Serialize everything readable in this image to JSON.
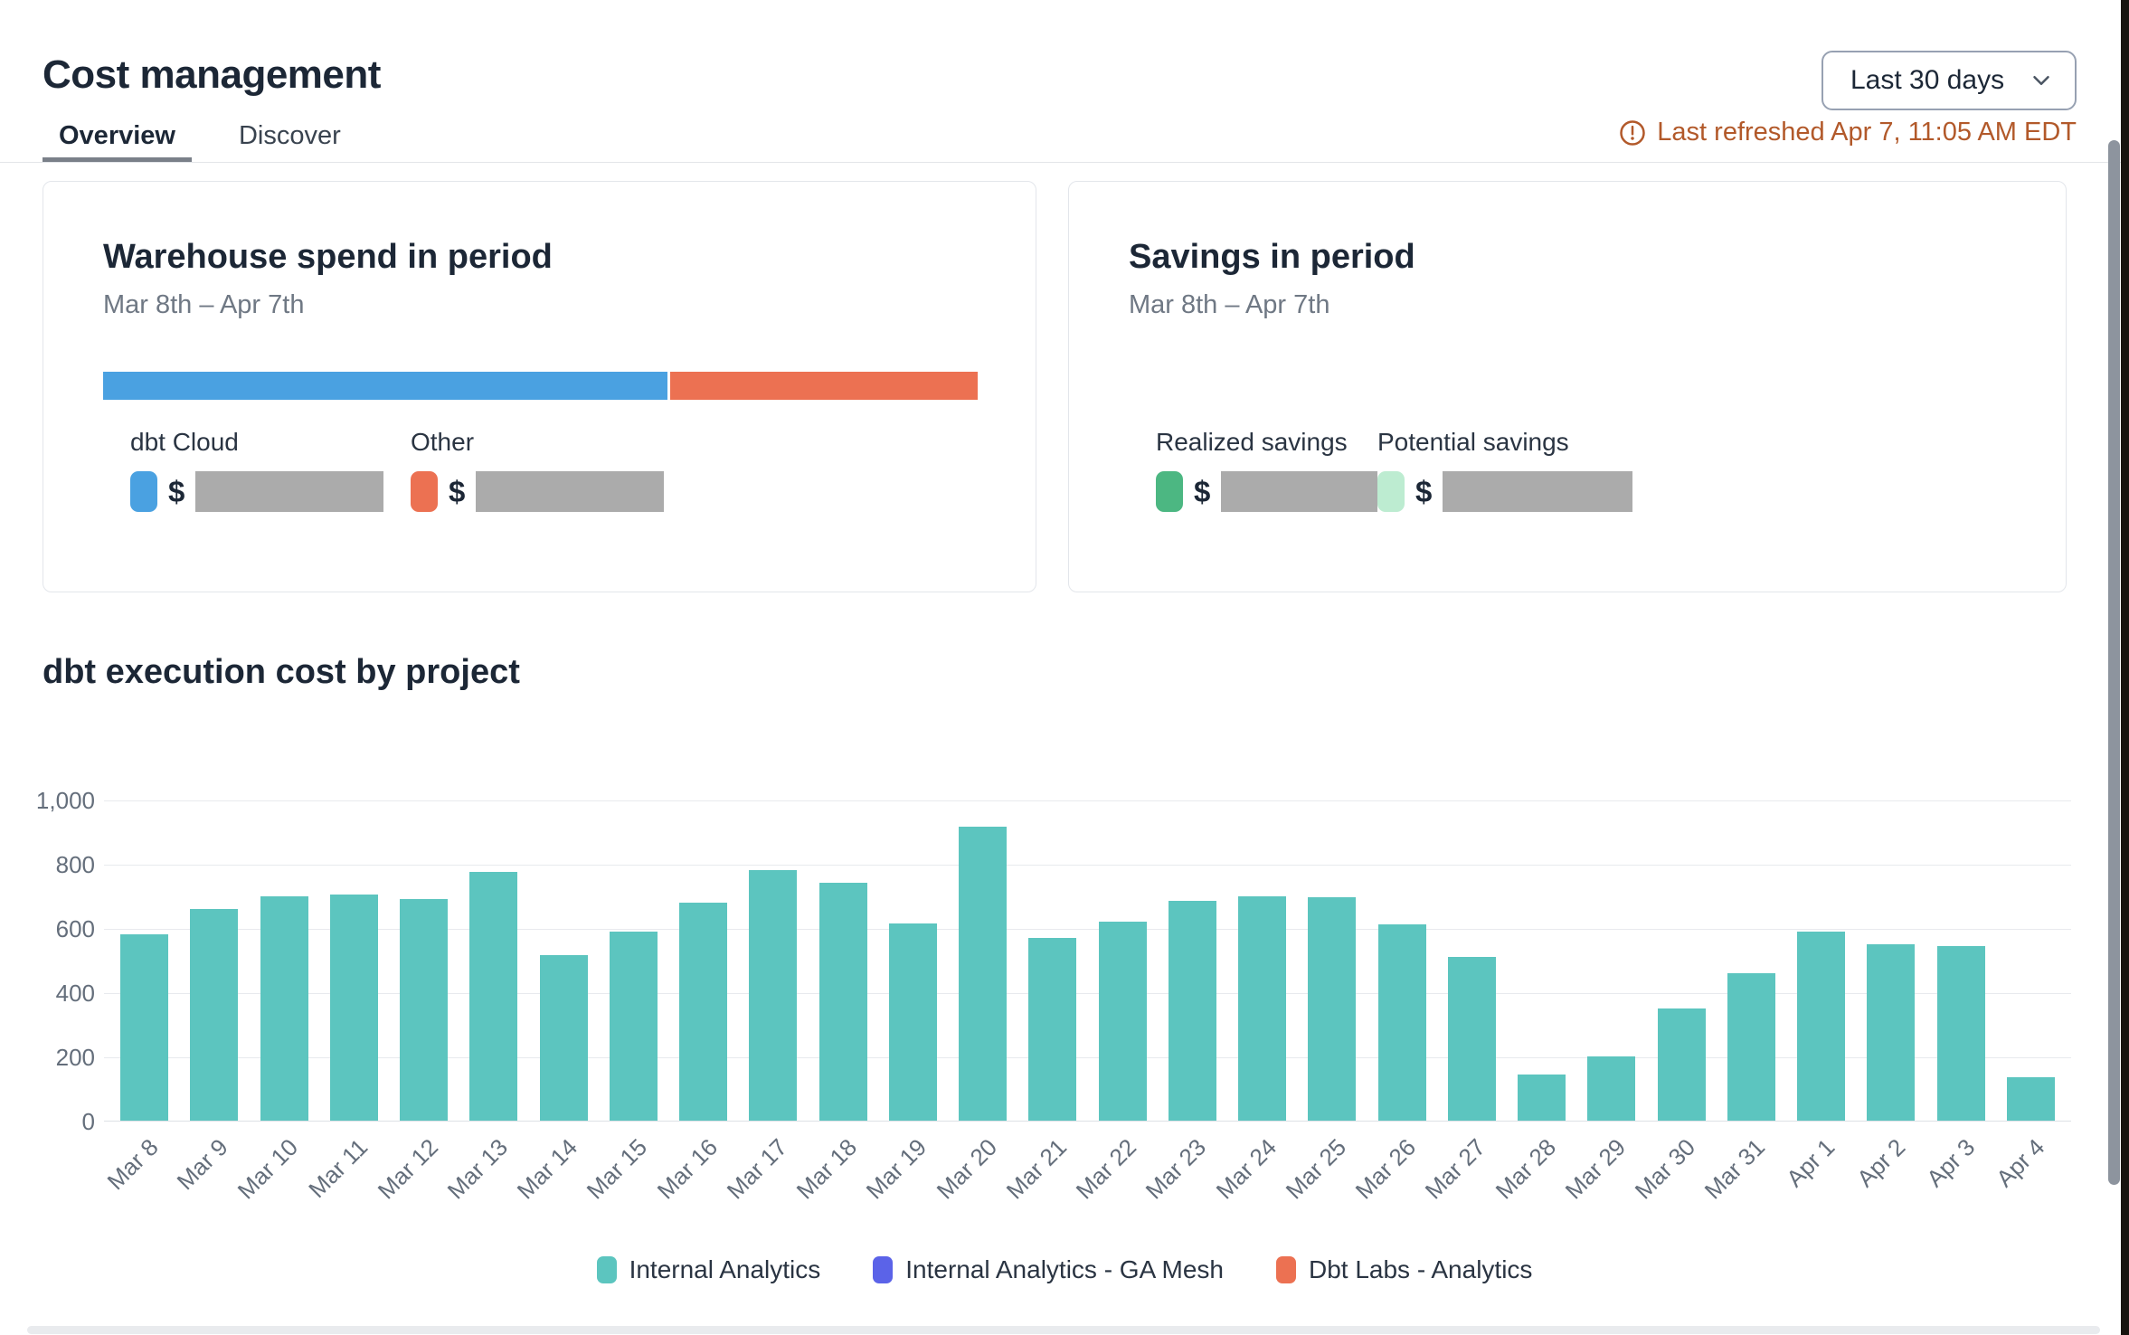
{
  "header": {
    "title": "Cost management",
    "tabs": [
      {
        "label": "Overview",
        "active": true
      },
      {
        "label": "Discover",
        "active": false
      }
    ],
    "date_range_selector": {
      "value": "Last 30 days"
    },
    "last_refreshed": "Last refreshed Apr 7, 11:05 AM EDT"
  },
  "colors": {
    "dbt_cloud_blue": "#4AA1E1",
    "other_orange": "#EC7152",
    "teal": "#5CC5BF",
    "indigo": "#5B63E8",
    "green": "#4CB782",
    "light_green": "#BDECD1",
    "redacted_gray": "#ABABAB",
    "warning_orange": "#B2592A"
  },
  "cards": {
    "warehouse_spend": {
      "title": "Warehouse spend in period",
      "subtitle": "Mar 8th – Apr 7th",
      "stacked_bar": {
        "segments": [
          {
            "label": "dbt Cloud",
            "color": "#4AA1E1",
            "percent": 64.5
          },
          {
            "label": "Other",
            "color": "#EC7152",
            "percent": 35.5
          }
        ]
      },
      "legend": [
        {
          "label": "dbt Cloud",
          "color": "#4AA1E1",
          "currency": "$",
          "value_redacted": true
        },
        {
          "label": "Other",
          "color": "#EC7152",
          "currency": "$",
          "value_redacted": true
        }
      ]
    },
    "savings": {
      "title": "Savings in period",
      "subtitle": "Mar 8th – Apr 7th",
      "legend": [
        {
          "label": "Realized savings",
          "color": "#4CB782",
          "currency": "$",
          "value_redacted": true
        },
        {
          "label": "Potential savings",
          "color": "#BDECD1",
          "currency": "$",
          "value_redacted": true
        }
      ]
    }
  },
  "chart_section": {
    "title": "dbt execution cost by project"
  },
  "chart_data": {
    "type": "bar",
    "title": "dbt execution cost by project",
    "categories": [
      "Mar 8",
      "Mar 9",
      "Mar 10",
      "Mar 11",
      "Mar 12",
      "Mar 13",
      "Mar 14",
      "Mar 15",
      "Mar 16",
      "Mar 17",
      "Mar 18",
      "Mar 19",
      "Mar 20",
      "Mar 21",
      "Mar 22",
      "Mar 23",
      "Mar 24",
      "Mar 25",
      "Mar 26",
      "Mar 27",
      "Mar 28",
      "Mar 29",
      "Mar 30",
      "Mar 31",
      "Apr 1",
      "Apr 2",
      "Apr 3",
      "Apr 4"
    ],
    "values": [
      580,
      660,
      700,
      705,
      690,
      775,
      515,
      590,
      680,
      780,
      740,
      615,
      915,
      570,
      620,
      685,
      700,
      695,
      610,
      510,
      145,
      200,
      350,
      460,
      590,
      550,
      545,
      135
    ],
    "series_name": "Internal Analytics",
    "xlabel": "",
    "ylabel": "",
    "ylim": [
      0,
      1000
    ],
    "y_ticks": [
      "1,000",
      "800",
      "600",
      "400",
      "200",
      "0"
    ],
    "grid": true,
    "legend_position": "bottom",
    "legend": [
      {
        "label": "Internal Analytics",
        "color": "#5CC5BF"
      },
      {
        "label": "Internal Analytics - GA Mesh",
        "color": "#5B63E8"
      },
      {
        "label": "Dbt Labs - Analytics",
        "color": "#EC7152"
      }
    ]
  }
}
